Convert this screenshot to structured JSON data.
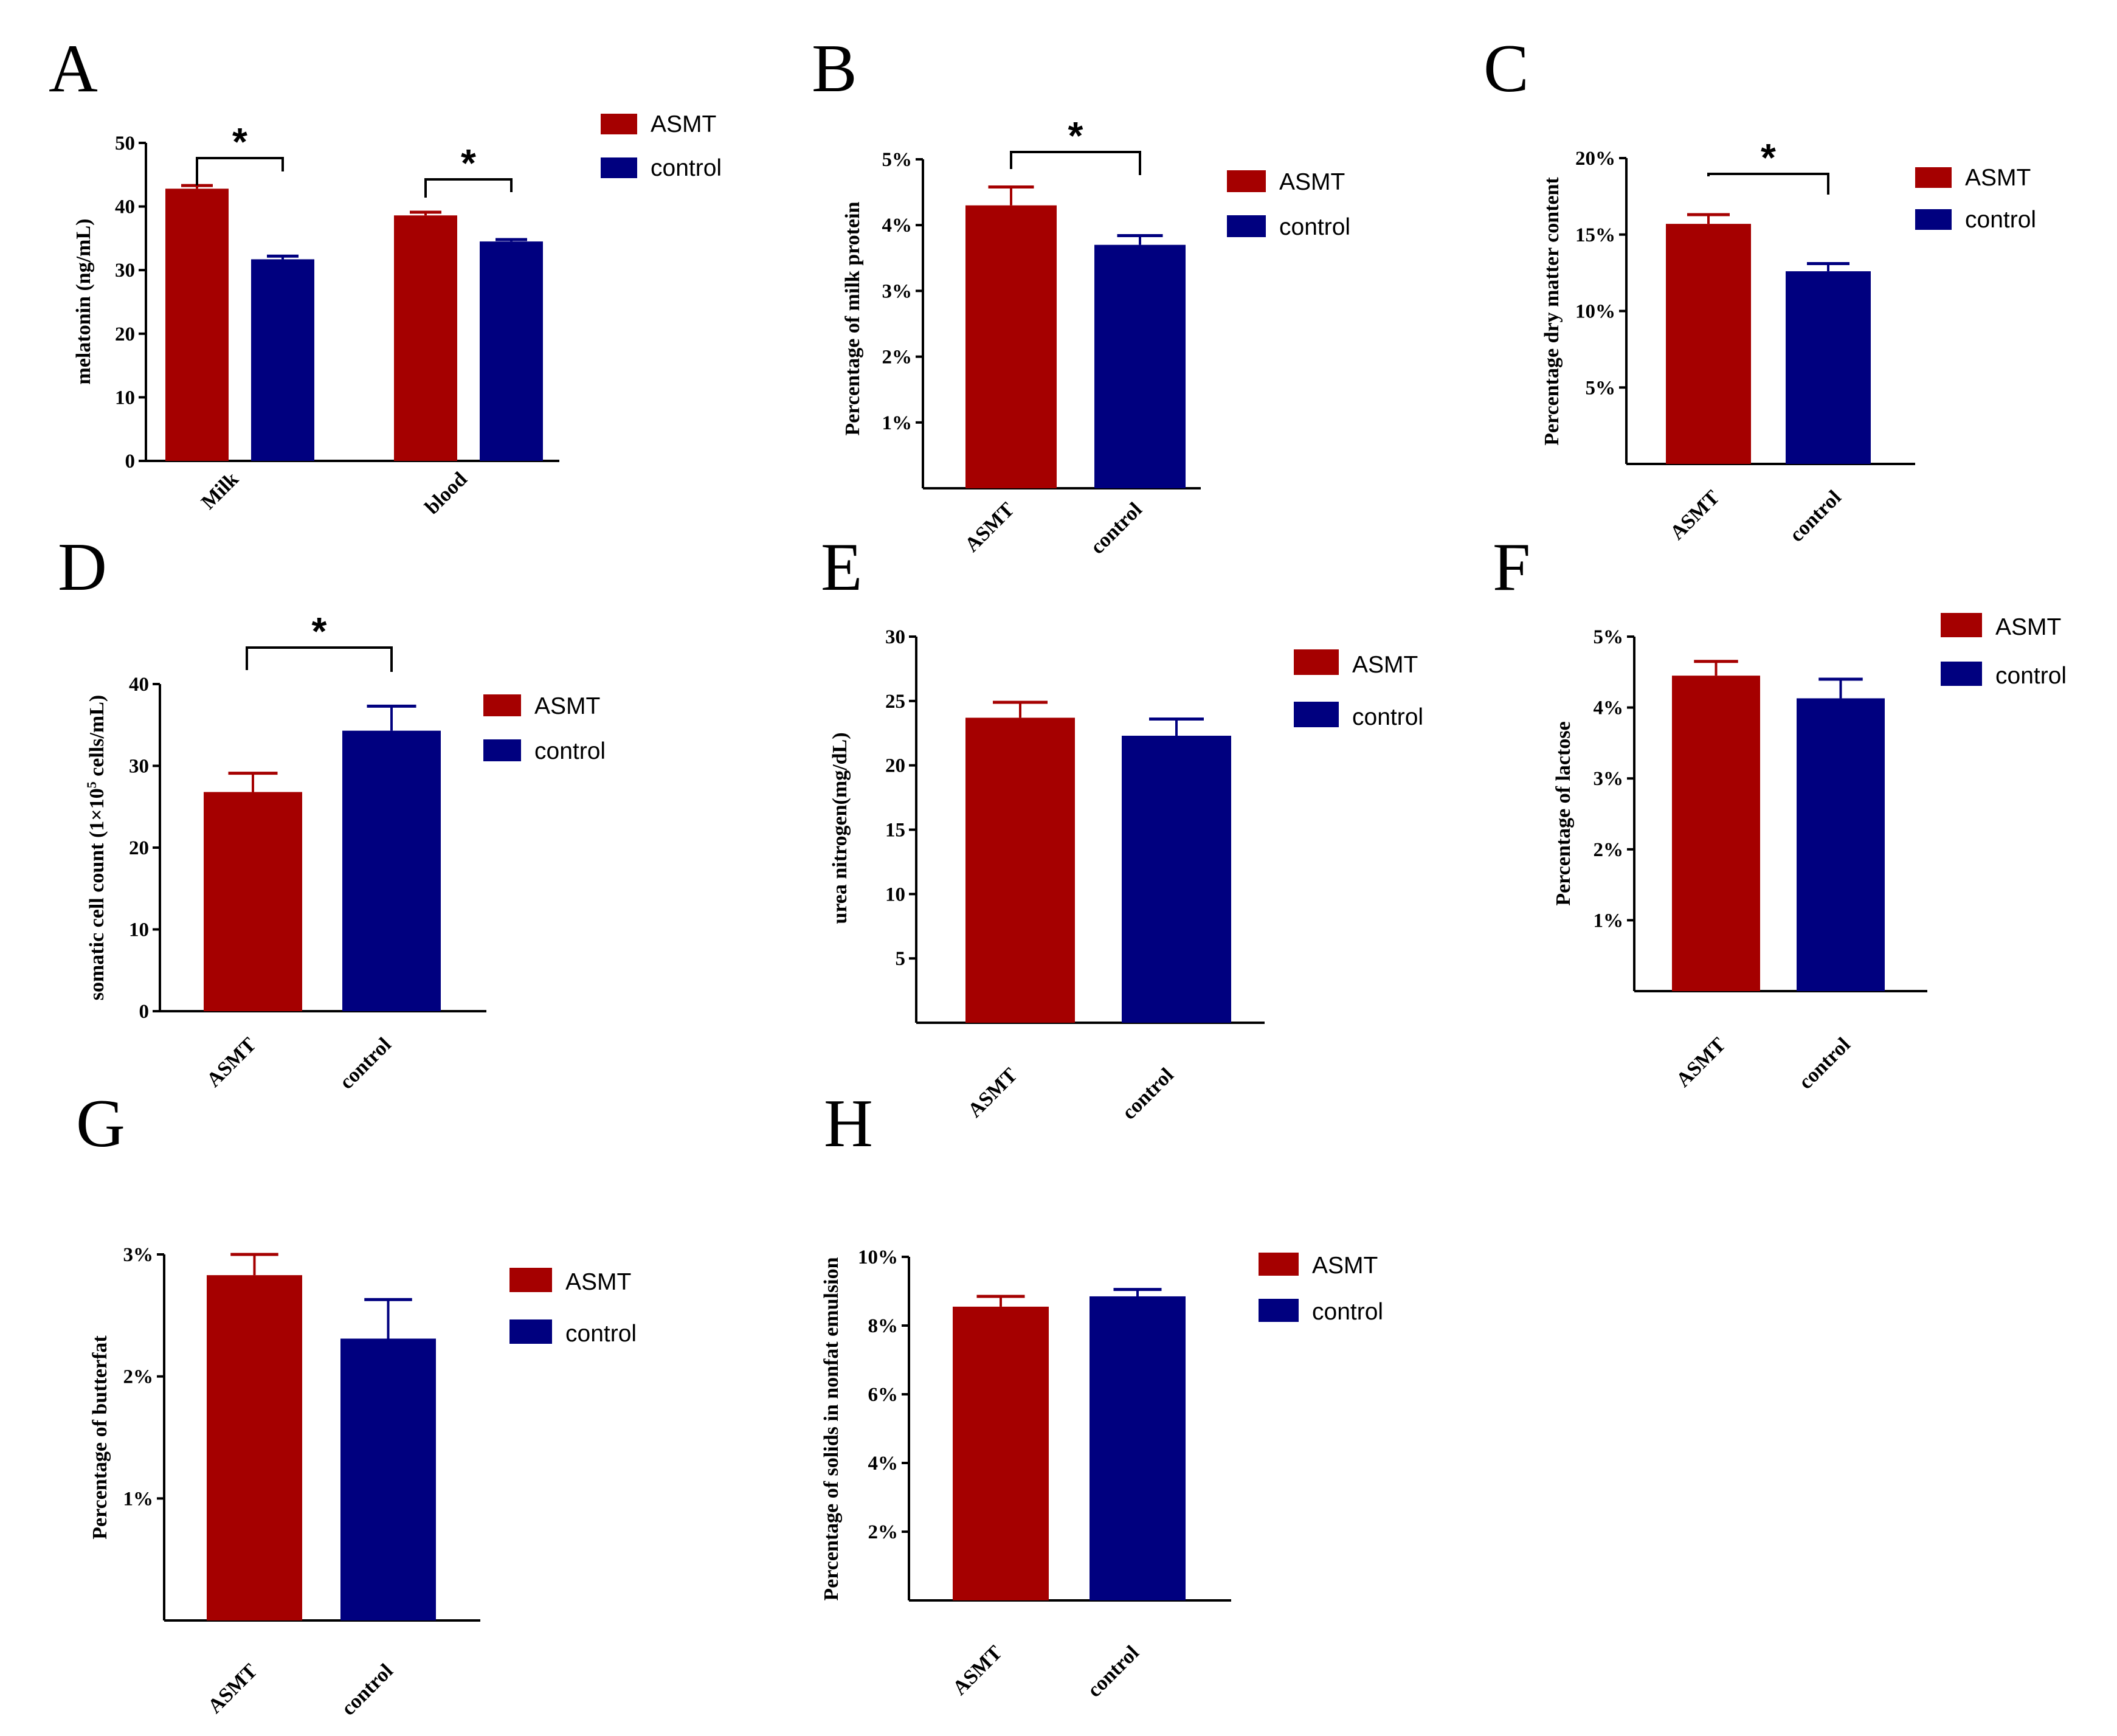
{
  "colors": {
    "ASMT": "#a50000",
    "control": "#00007f",
    "axis": "#000000"
  },
  "chart_data": [
    {
      "panel": "A",
      "type": "bar",
      "ylabel": "melatonin (ng/mL)",
      "categories": [
        "Milk",
        "blood"
      ],
      "series": [
        {
          "name": "ASMT",
          "values": [
            42.8,
            38.6
          ],
          "errors": [
            0.5,
            0.5
          ]
        },
        {
          "name": "control",
          "values": [
            31.7,
            34.5
          ],
          "errors": [
            0.5,
            0.3
          ]
        }
      ],
      "ylim": [
        0,
        50
      ],
      "yticks": [
        "0",
        "10",
        "20",
        "30",
        "40",
        "50"
      ],
      "significance": [
        "*",
        "*"
      ],
      "legend": [
        "ASMT",
        "control"
      ]
    },
    {
      "panel": "B",
      "type": "bar",
      "ylabel": "Percentage of milk protein",
      "categories": [
        "ASMT",
        "control"
      ],
      "values": [
        4.3,
        3.7
      ],
      "errors": [
        0.28,
        0.14
      ],
      "ylim": [
        0,
        5
      ],
      "yticks": [
        "1%",
        "2%",
        "3%",
        "4%",
        "5%"
      ],
      "significance": "*",
      "legend": [
        "ASMT",
        "control"
      ]
    },
    {
      "panel": "C",
      "type": "bar",
      "ylabel": "Percentage dry matter content",
      "categories": [
        "ASMT",
        "control"
      ],
      "values": [
        15.7,
        12.6
      ],
      "errors": [
        0.6,
        0.5
      ],
      "ylim": [
        0,
        20
      ],
      "yticks": [
        "5%",
        "10%",
        "15%",
        "20%"
      ],
      "significance": "*",
      "legend": [
        "ASMT",
        "control"
      ]
    },
    {
      "panel": "D",
      "type": "bar",
      "ylabel": "somatic cell count (1×10",
      "ylabel_sup": "5",
      "ylabel_tail": " cells/mL)",
      "categories": [
        "ASMT",
        "control"
      ],
      "values": [
        26.8,
        34.3
      ],
      "errors": [
        2.3,
        3.0
      ],
      "ylim": [
        0,
        40
      ],
      "yticks": [
        "0",
        "10",
        "20",
        "30",
        "40"
      ],
      "significance": "*",
      "legend": [
        "ASMT",
        "control"
      ]
    },
    {
      "panel": "E",
      "type": "bar",
      "ylabel": "urea nitrogen(mg/dL)",
      "categories": [
        "ASMT",
        "control"
      ],
      "values": [
        23.7,
        22.3
      ],
      "errors": [
        1.2,
        1.3
      ],
      "ylim": [
        0,
        30
      ],
      "yticks": [
        "5",
        "10",
        "15",
        "20",
        "25",
        "30"
      ],
      "legend": [
        "ASMT",
        "control"
      ]
    },
    {
      "panel": "F",
      "type": "bar",
      "ylabel": "Percentage of lactose",
      "categories": [
        "ASMT",
        "control"
      ],
      "values": [
        4.45,
        4.13
      ],
      "errors": [
        0.2,
        0.27
      ],
      "ylim": [
        0,
        5
      ],
      "yticks": [
        "1%",
        "2%",
        "3%",
        "4%",
        "5%"
      ],
      "legend": [
        "ASMT",
        "control"
      ]
    },
    {
      "panel": "G",
      "type": "bar",
      "ylabel": "Percentage of butterfat",
      "categories": [
        "ASMT",
        "control"
      ],
      "values": [
        2.83,
        2.31
      ],
      "errors": [
        0.17,
        0.32
      ],
      "ylim": [
        0,
        3
      ],
      "yticks": [
        "1%",
        "2%",
        "3%"
      ],
      "legend": [
        "ASMT",
        "control"
      ]
    },
    {
      "panel": "H",
      "type": "bar",
      "ylabel": "Percentage of solids in nonfat emulsion",
      "categories": [
        "ASMT",
        "control"
      ],
      "values": [
        8.55,
        8.85
      ],
      "errors": [
        0.3,
        0.2
      ],
      "ylim": [
        0,
        10
      ],
      "yticks": [
        "2%",
        "4%",
        "6%",
        "8%",
        "10%"
      ],
      "legend": [
        "ASMT",
        "control"
      ]
    }
  ]
}
